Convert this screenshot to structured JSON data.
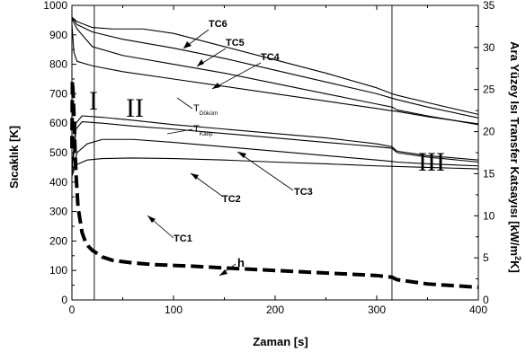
{
  "chart_data": {
    "type": "line",
    "xlabel": "Zaman [s]",
    "ylabel_left": "Sıcaklık [K]",
    "ylabel_right_prefix": "Ara Yüzey Isı Transfer Katsayısı [kW/m",
    "ylabel_right_sup": "2",
    "ylabel_right_suffix": "K]",
    "xlim": [
      0,
      400
    ],
    "ylim_left": [
      0,
      1000
    ],
    "ylim_right": [
      0,
      35
    ],
    "xticks": [
      "0",
      "100",
      "200",
      "300",
      "400"
    ],
    "yticks_left": [
      "0",
      "50",
      "100",
      "150",
      "200",
      "250",
      "300",
      "350",
      "400",
      "450",
      "500",
      "550",
      "600",
      "650",
      "700",
      "750",
      "800",
      "850",
      "900",
      "950",
      "1000"
    ],
    "yticks_right": [
      "0",
      "5",
      "10",
      "15",
      "20",
      "25",
      "30",
      "35"
    ],
    "grid": false,
    "regions": [
      {
        "label": "I",
        "x_end": 22
      },
      {
        "label": "II",
        "x_end": 315
      },
      {
        "label": "III",
        "x_end": 400
      }
    ],
    "series": [
      {
        "name": "TC6",
        "axis": "left",
        "x": [
          0,
          5,
          20,
          40,
          70,
          100,
          150,
          200,
          250,
          300,
          315,
          320,
          350,
          400
        ],
        "y": [
          960,
          945,
          925,
          920,
          920,
          905,
          860,
          815,
          770,
          720,
          700,
          695,
          670,
          630
        ]
      },
      {
        "name": "TC5",
        "axis": "left",
        "x": [
          0,
          5,
          20,
          50,
          100,
          150,
          200,
          250,
          300,
          315,
          320,
          350,
          400
        ],
        "y": [
          960,
          935,
          910,
          885,
          855,
          820,
          780,
          740,
          700,
          685,
          680,
          655,
          618
        ]
      },
      {
        "name": "TC4",
        "axis": "left",
        "x": [
          0,
          5,
          20,
          50,
          100,
          150,
          200,
          250,
          300,
          315,
          320,
          350,
          400
        ],
        "y": [
          955,
          920,
          860,
          830,
          800,
          770,
          735,
          700,
          665,
          655,
          645,
          625,
          595
        ]
      },
      {
        "name": "TDöküm",
        "label_main": "T",
        "label_sub": "Döküm",
        "axis": "left",
        "x": [
          0,
          2,
          5,
          20,
          50,
          100,
          150,
          200,
          250,
          300,
          315,
          320,
          350,
          400
        ],
        "y": [
          935,
          840,
          810,
          795,
          775,
          750,
          725,
          700,
          675,
          650,
          642,
          640,
          622,
          598
        ]
      },
      {
        "name": "TKalıp",
        "label_main": "T",
        "label_sub": "Kalıp",
        "axis": "left",
        "x": [
          0,
          2,
          4,
          10,
          30,
          60,
          100,
          150,
          200,
          250,
          300,
          315,
          320,
          350,
          400
        ],
        "y": [
          450,
          520,
          600,
          625,
          620,
          610,
          595,
          580,
          565,
          550,
          530,
          520,
          505,
          490,
          475
        ]
      },
      {
        "name": "TC3",
        "axis": "left",
        "x": [
          0,
          2,
          4,
          10,
          30,
          60,
          100,
          150,
          200,
          250,
          300,
          315,
          320,
          350,
          400
        ],
        "y": [
          440,
          500,
          580,
          605,
          600,
          590,
          580,
          565,
          550,
          535,
          520,
          515,
          500,
          485,
          468
        ]
      },
      {
        "name": "TC2",
        "axis": "left",
        "x": [
          0,
          2,
          5,
          15,
          30,
          60,
          100,
          150,
          200,
          250,
          300,
          315,
          320,
          350,
          400
        ],
        "y": [
          430,
          455,
          500,
          530,
          545,
          545,
          535,
          520,
          505,
          490,
          475,
          470,
          468,
          462,
          455
        ]
      },
      {
        "name": "TC1",
        "axis": "left",
        "x": [
          0,
          2,
          5,
          15,
          30,
          60,
          100,
          150,
          200,
          250,
          300,
          350,
          400
        ],
        "y": [
          420,
          440,
          460,
          475,
          480,
          482,
          480,
          475,
          468,
          462,
          455,
          450,
          445
        ]
      },
      {
        "name": "h",
        "axis": "right",
        "style": "dashed",
        "x": [
          0,
          0.5,
          1,
          2,
          3,
          4,
          5,
          6,
          8,
          10,
          13,
          16,
          20,
          25,
          30,
          40,
          60,
          80,
          100,
          120,
          150,
          200,
          250,
          300,
          315,
          320,
          350,
          400
        ],
        "y": [
          18,
          26,
          25,
          22,
          18,
          15,
          13,
          11,
          9.5,
          8,
          7,
          6.4,
          5.9,
          5.5,
          5.1,
          4.7,
          4.4,
          4.2,
          4.1,
          4.0,
          3.8,
          3.5,
          3.2,
          2.9,
          2.7,
          2.4,
          1.9,
          1.5
        ]
      }
    ],
    "annotations": [
      {
        "text": "TC6"
      },
      {
        "text": "TC5"
      },
      {
        "text": "TC4"
      },
      {
        "text": "TC3"
      },
      {
        "text": "TC2"
      },
      {
        "text": "TC1"
      },
      {
        "text": "h"
      }
    ]
  }
}
